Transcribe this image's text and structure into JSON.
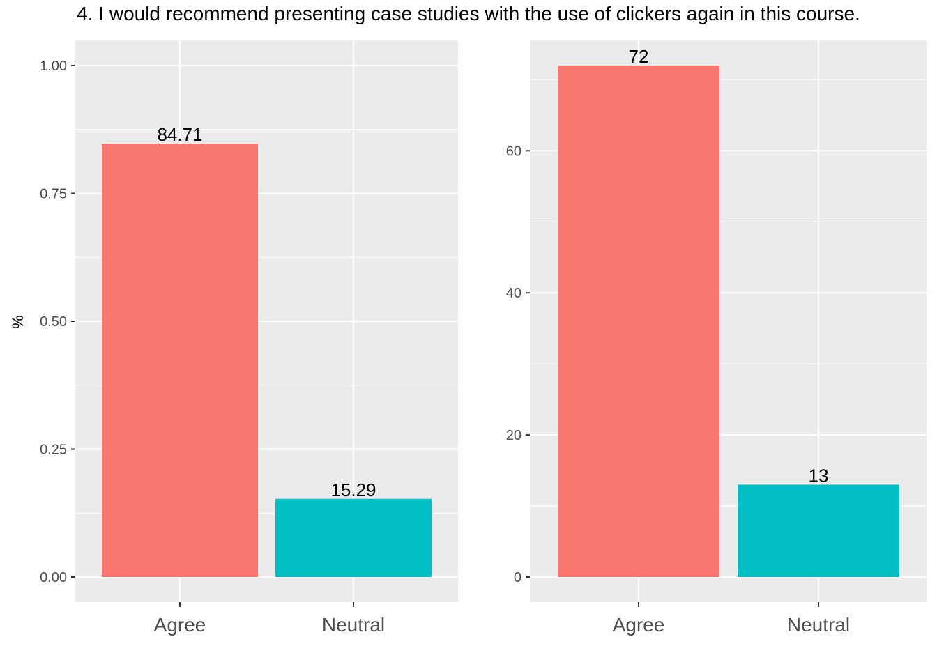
{
  "title": "4. I would recommend presenting case studies with the use of clickers again in this course.",
  "colors": {
    "agree": "#F8766D",
    "neutral": "#00BFC4",
    "panel_bg": "#EBEBEB",
    "grid": "#FFFFFF"
  },
  "chart_data": [
    {
      "type": "bar",
      "categories": [
        "Agree",
        "Neutral"
      ],
      "values": [
        0.8471,
        0.1529
      ],
      "data_labels": [
        "84.71",
        "15.29"
      ],
      "ylabel": "%",
      "ylim": [
        0,
        1.0
      ],
      "yticks": [
        0,
        0.25,
        0.5,
        0.75,
        1.0
      ],
      "ytick_labels": [
        "0.00",
        "0.25",
        "0.50",
        "0.75",
        "1.00"
      ],
      "grid": true
    },
    {
      "type": "bar",
      "categories": [
        "Agree",
        "Neutral"
      ],
      "values": [
        72,
        13
      ],
      "data_labels": [
        "72",
        "13"
      ],
      "ylabel": "",
      "ylim": [
        0,
        72
      ],
      "yticks": [
        0,
        20,
        40,
        60
      ],
      "ytick_labels": [
        "0",
        "20",
        "40",
        "60"
      ],
      "grid": true
    }
  ]
}
